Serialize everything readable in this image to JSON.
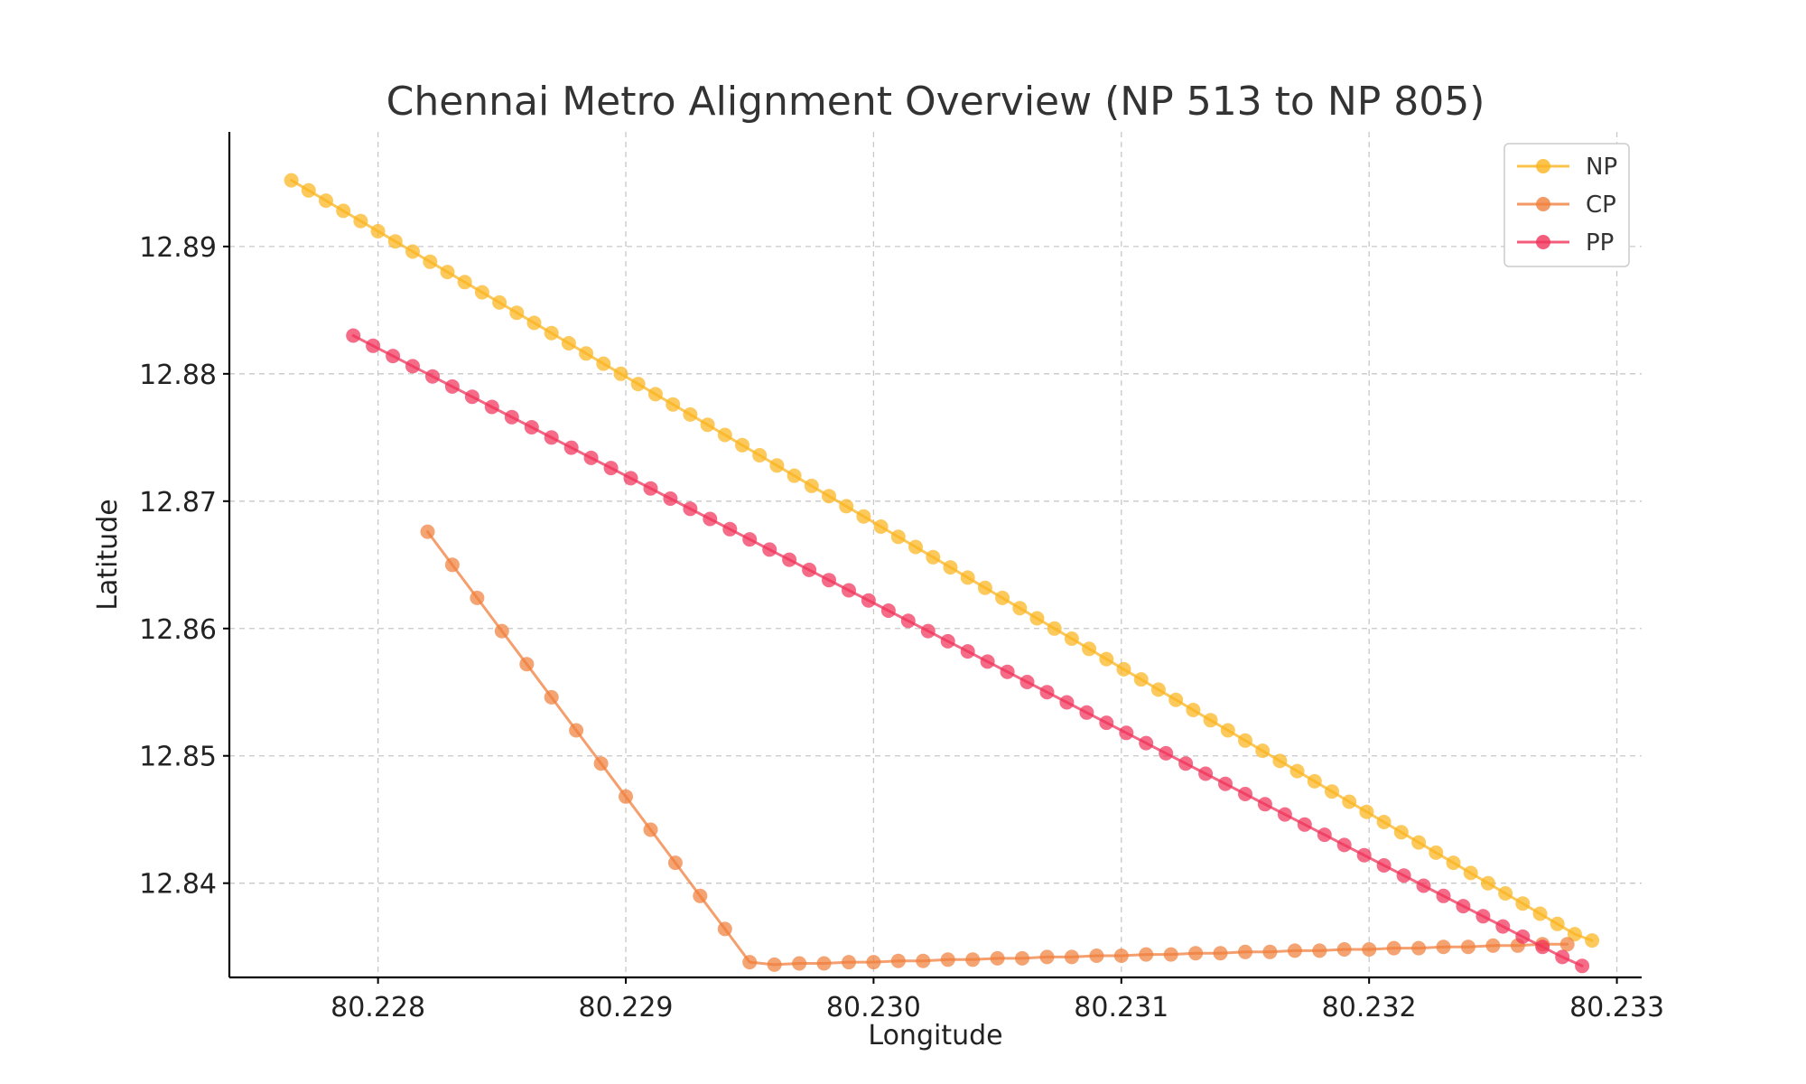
{
  "chart_data": {
    "type": "line",
    "title": "Chennai Metro Alignment Overview (NP 513 to NP 805)",
    "xlabel": "Longitude",
    "ylabel": "Latitude",
    "xlim": [
      80.2274,
      80.2331
    ],
    "ylim": [
      12.8326,
      12.899
    ],
    "x_ticks": [
      "80.228",
      "80.229",
      "80.230",
      "80.231",
      "80.232",
      "80.233"
    ],
    "y_ticks": [
      "12.84",
      "12.85",
      "12.86",
      "12.87",
      "12.88",
      "12.89"
    ],
    "x_tick_values": [
      80.228,
      80.229,
      80.23,
      80.231,
      80.232,
      80.233
    ],
    "y_tick_values": [
      12.84,
      12.85,
      12.86,
      12.87,
      12.88,
      12.89
    ],
    "grid": true,
    "legend_position": "top-right",
    "series": [
      {
        "name": "NP",
        "color": "#FBB41F",
        "x": [
          80.22765,
          80.22772,
          80.22779,
          80.22786,
          80.22793,
          80.228,
          80.22807,
          80.22814,
          80.22821,
          80.22828,
          80.22835,
          80.22842,
          80.22849,
          80.22856,
          80.22863,
          80.2287,
          80.22877,
          80.22884,
          80.22891,
          80.22898,
          80.22905,
          80.22912,
          80.22919,
          80.22926,
          80.22933,
          80.2294,
          80.22947,
          80.22954,
          80.22961,
          80.22968,
          80.22975,
          80.22982,
          80.22989,
          80.22996,
          80.23003,
          80.2301,
          80.23017,
          80.23024,
          80.23031,
          80.23038,
          80.23045,
          80.23052,
          80.23059,
          80.23066,
          80.23073,
          80.2308,
          80.23087,
          80.23094,
          80.23101,
          80.23108,
          80.23115,
          80.23122,
          80.23129,
          80.23136,
          80.23143,
          80.2315,
          80.23157,
          80.23164,
          80.23171,
          80.23178,
          80.23185,
          80.23192,
          80.23199,
          80.23206,
          80.23213,
          80.2322,
          80.23227,
          80.23234,
          80.23241,
          80.23248,
          80.23255,
          80.23262,
          80.23269,
          80.23276,
          80.23283,
          80.2329
        ],
        "y": [
          12.8952,
          12.8944,
          12.8936,
          12.8928,
          12.892,
          12.8912,
          12.8904,
          12.8896,
          12.8888,
          12.888,
          12.8872,
          12.8864,
          12.8856,
          12.8848,
          12.884,
          12.8832,
          12.8824,
          12.8816,
          12.8808,
          12.88,
          12.8792,
          12.8784,
          12.8776,
          12.8768,
          12.876,
          12.8752,
          12.8744,
          12.8736,
          12.8728,
          12.872,
          12.8712,
          12.8704,
          12.8696,
          12.8688,
          12.868,
          12.8672,
          12.8664,
          12.8656,
          12.8648,
          12.864,
          12.8632,
          12.8624,
          12.8616,
          12.8608,
          12.86,
          12.8592,
          12.8584,
          12.8576,
          12.8568,
          12.856,
          12.8552,
          12.8544,
          12.8536,
          12.8528,
          12.852,
          12.8512,
          12.8504,
          12.8496,
          12.8488,
          12.848,
          12.8472,
          12.8464,
          12.8456,
          12.8448,
          12.844,
          12.8432,
          12.8424,
          12.8416,
          12.8408,
          12.84,
          12.8392,
          12.8384,
          12.8376,
          12.8368,
          12.836,
          12.8355
        ]
      },
      {
        "name": "CP",
        "color": "#F07F3C",
        "x": [
          80.2282,
          80.2283,
          80.2284,
          80.2285,
          80.2286,
          80.2287,
          80.2288,
          80.2289,
          80.229,
          80.2291,
          80.2292,
          80.2293,
          80.2294,
          80.2295,
          80.2296,
          80.2297,
          80.2298,
          80.2299,
          80.23,
          80.2301,
          80.2302,
          80.2303,
          80.2304,
          80.2305,
          80.2306,
          80.2307,
          80.2308,
          80.2309,
          80.231,
          80.2311,
          80.2312,
          80.2313,
          80.2314,
          80.2315,
          80.2316,
          80.2317,
          80.2318,
          80.2319,
          80.232,
          80.2321,
          80.2322,
          80.2323,
          80.2324,
          80.2325,
          80.2326,
          80.2327,
          80.2328
        ],
        "y": [
          12.8676,
          12.865,
          12.8624,
          12.8598,
          12.8572,
          12.8546,
          12.852,
          12.8494,
          12.8468,
          12.8442,
          12.8416,
          12.839,
          12.8364,
          12.8338,
          12.8336,
          12.8337,
          12.8337,
          12.8338,
          12.8338,
          12.8339,
          12.8339,
          12.834,
          12.834,
          12.8341,
          12.8341,
          12.8342,
          12.8342,
          12.8343,
          12.8343,
          12.8344,
          12.8344,
          12.8345,
          12.8345,
          12.8346,
          12.8346,
          12.8347,
          12.8347,
          12.8348,
          12.8348,
          12.8349,
          12.8349,
          12.835,
          12.835,
          12.8351,
          12.8351,
          12.8352,
          12.8352
        ]
      },
      {
        "name": "PP",
        "color": "#F0335A",
        "x": [
          80.2279,
          80.22798,
          80.22806,
          80.22814,
          80.22822,
          80.2283,
          80.22838,
          80.22846,
          80.22854,
          80.22862,
          80.2287,
          80.22878,
          80.22886,
          80.22894,
          80.22902,
          80.2291,
          80.22918,
          80.22926,
          80.22934,
          80.22942,
          80.2295,
          80.22958,
          80.22966,
          80.22974,
          80.22982,
          80.2299,
          80.22998,
          80.23006,
          80.23014,
          80.23022,
          80.2303,
          80.23038,
          80.23046,
          80.23054,
          80.23062,
          80.2307,
          80.23078,
          80.23086,
          80.23094,
          80.23102,
          80.2311,
          80.23118,
          80.23126,
          80.23134,
          80.23142,
          80.2315,
          80.23158,
          80.23166,
          80.23174,
          80.23182,
          80.2319,
          80.23198,
          80.23206,
          80.23214,
          80.23222,
          80.2323,
          80.23238,
          80.23246,
          80.23254,
          80.23262,
          80.2327,
          80.23278,
          80.23286
        ],
        "y": [
          12.883,
          12.8822,
          12.8814,
          12.8806,
          12.8798,
          12.879,
          12.8782,
          12.8774,
          12.8766,
          12.8758,
          12.875,
          12.8742,
          12.8734,
          12.8726,
          12.8718,
          12.871,
          12.8702,
          12.8694,
          12.8686,
          12.8678,
          12.867,
          12.8662,
          12.8654,
          12.8646,
          12.8638,
          12.863,
          12.8622,
          12.8614,
          12.8606,
          12.8598,
          12.859,
          12.8582,
          12.8574,
          12.8566,
          12.8558,
          12.855,
          12.8542,
          12.8534,
          12.8526,
          12.8518,
          12.851,
          12.8502,
          12.8494,
          12.8486,
          12.8478,
          12.847,
          12.8462,
          12.8454,
          12.8446,
          12.8438,
          12.843,
          12.8422,
          12.8414,
          12.8406,
          12.8398,
          12.839,
          12.8382,
          12.8374,
          12.8366,
          12.8358,
          12.835,
          12.8342,
          12.8335
        ]
      }
    ]
  }
}
